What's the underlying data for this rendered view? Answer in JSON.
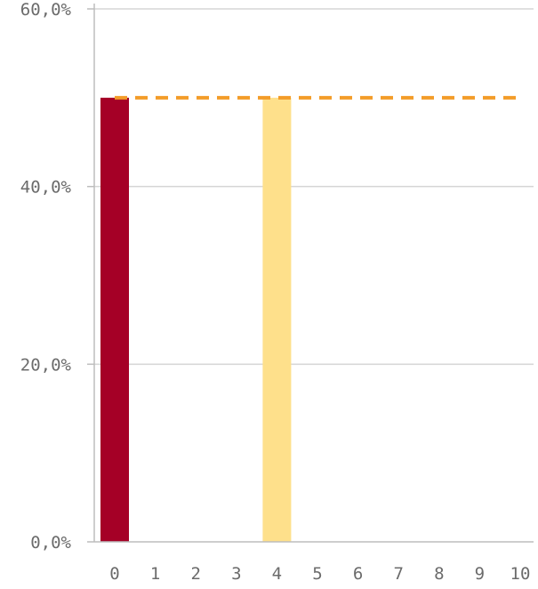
{
  "chart_data": {
    "type": "bar",
    "title": "",
    "xlabel": "",
    "ylabel": "",
    "categories": [
      "0",
      "1",
      "2",
      "3",
      "4",
      "5",
      "6",
      "7",
      "8",
      "9",
      "10"
    ],
    "values": [
      50.0,
      0,
      0,
      0,
      50.0,
      0,
      0,
      0,
      0,
      0,
      0
    ],
    "value_unit": "%",
    "ylim": [
      0,
      60
    ],
    "yticks": [
      0,
      20,
      40,
      60
    ],
    "ytick_labels": [
      "0,0%",
      "20,0%",
      "40,0%",
      "60,0%"
    ],
    "grid": true,
    "bar_colors": {
      "0": "#a50026",
      "4": "#fee08b"
    },
    "reference_line": {
      "value": 50.0,
      "style": "dashed",
      "color": "#f39c28"
    }
  }
}
